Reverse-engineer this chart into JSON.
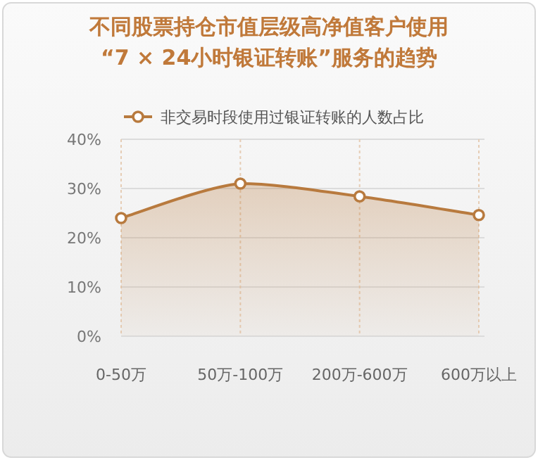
{
  "chart_data": {
    "type": "area",
    "title": "不同股票持仓市值层级高净值客户使用\n“7 × 24小时银证转账”服务的趋势",
    "categories": [
      "0-50万",
      "50万-100万",
      "200万-600万",
      "600万以上"
    ],
    "series": [
      {
        "name": "非交易时段使用过银证转账的人数占比",
        "color": "#b87a3e",
        "values": [
          24.0,
          31.0,
          28.4,
          24.6
        ]
      }
    ],
    "ylim": [
      0,
      40
    ],
    "yticks": [
      {
        "value": 0,
        "label": "0%"
      },
      {
        "value": 10,
        "label": "10%"
      },
      {
        "value": 20,
        "label": "20%"
      },
      {
        "value": 30,
        "label": "30%"
      },
      {
        "value": 40,
        "label": "40%"
      }
    ],
    "grid": true,
    "legend": "top",
    "marker": "circle"
  }
}
